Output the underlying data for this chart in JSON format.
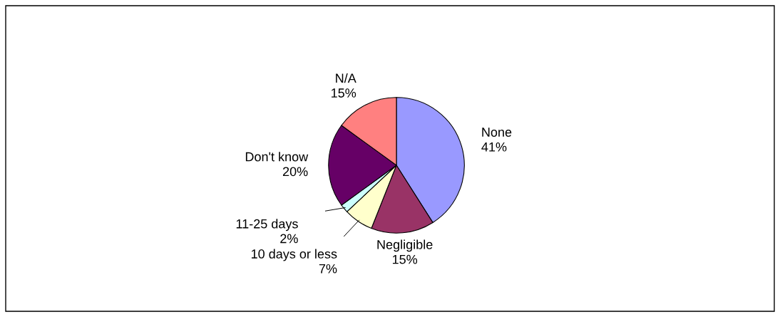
{
  "chart_data": {
    "type": "pie",
    "categories": [
      "None",
      "Negligible",
      "10 days or less",
      "11-25 days",
      "Don't know",
      "N/A"
    ],
    "values": [
      41,
      15,
      7,
      2,
      20,
      15
    ],
    "colors": [
      "#9999ff",
      "#993366",
      "#ffffcc",
      "#ccffff",
      "#660066",
      "#ff8080"
    ],
    "value_labels": [
      "41%",
      "15%",
      "7%",
      "2%",
      "20%",
      "15%"
    ],
    "legend": false
  }
}
